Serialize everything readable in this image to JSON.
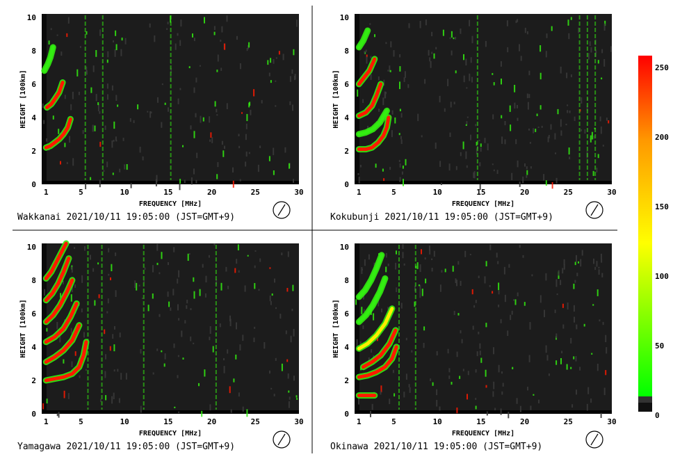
{
  "colors": {
    "background": "#ffffff",
    "plot_background": "#1c1c1c",
    "low_echo": "#33ee11",
    "mid_echo": "#ffee00",
    "high_echo": "#ff1a00"
  },
  "colorbar": {
    "ticks": [
      "250",
      "200",
      "150",
      "100",
      "50",
      "0"
    ],
    "range": [
      0,
      255
    ],
    "stops": [
      "#ff0000",
      "#ff9900",
      "#ffff00",
      "#00ff00"
    ]
  },
  "chart_data": [
    {
      "type": "heatmap",
      "station": "Wakkanai",
      "timestamp": "2021/10/11 19:05:00 (JST=GMT+9)",
      "xlabel": "FREQUENCY [MHz]",
      "ylabel": "HEIGHT [100km]",
      "xlim": [
        0.5,
        30
      ],
      "ylim": [
        0,
        10.2
      ],
      "x_ticks": [
        "1",
        "5",
        "10",
        "15",
        "20",
        "25",
        "30"
      ],
      "y_ticks": [
        "0",
        "2",
        "4",
        "6",
        "8",
        "10"
      ],
      "traces": [
        {
          "x": [
            1.0,
            1.5,
            2.0,
            2.5,
            3.0,
            3.5,
            3.8
          ],
          "y": [
            2.2,
            2.3,
            2.5,
            2.7,
            3.0,
            3.4,
            3.9
          ],
          "level": 250
        },
        {
          "x": [
            1.1,
            1.6,
            2.0,
            2.5,
            2.9
          ],
          "y": [
            4.6,
            4.8,
            5.1,
            5.5,
            6.1
          ],
          "level": 230
        },
        {
          "x": [
            0.8,
            1.2,
            1.5,
            1.8
          ],
          "y": [
            6.8,
            7.2,
            7.6,
            8.2
          ],
          "level": 60
        }
      ],
      "lines": [
        5.5,
        7.5,
        15.3
      ],
      "grid": false
    },
    {
      "type": "heatmap",
      "station": "Kokubunji",
      "timestamp": "2021/10/11 19:05:00 (JST=GMT+9)",
      "xlabel": "FREQUENCY [MHz]",
      "ylabel": "HEIGHT [100km]",
      "xlim": [
        0.5,
        30
      ],
      "ylim": [
        0,
        10.2
      ],
      "x_ticks": [
        "1",
        "5",
        "10",
        "15",
        "20",
        "25",
        "30"
      ],
      "y_ticks": [
        "0",
        "2",
        "4",
        "6",
        "8",
        "10"
      ],
      "traces": [
        {
          "x": [
            1.0,
            1.8,
            2.5,
            3.2,
            3.8,
            4.2,
            4.4
          ],
          "y": [
            2.1,
            2.1,
            2.2,
            2.5,
            2.9,
            3.4,
            4.0
          ],
          "level": 250
        },
        {
          "x": [
            1.0,
            1.8,
            2.5,
            3.0,
            3.5
          ],
          "y": [
            4.1,
            4.3,
            4.7,
            5.3,
            6.0
          ],
          "level": 220
        },
        {
          "x": [
            1.0,
            1.6,
            2.2,
            2.8
          ],
          "y": [
            6.0,
            6.4,
            6.8,
            7.5
          ],
          "level": 200
        },
        {
          "x": [
            1.0,
            1.8,
            2.6,
            3.4,
            4.2
          ],
          "y": [
            3.0,
            3.1,
            3.3,
            3.7,
            4.4
          ],
          "level": 80
        },
        {
          "x": [
            1.0,
            1.5,
            2.0
          ],
          "y": [
            8.2,
            8.6,
            9.2
          ],
          "level": 60
        }
      ],
      "lines": [
        14.6,
        26.3,
        27.2,
        28.1
      ],
      "grid": false
    },
    {
      "type": "heatmap",
      "station": "Yamagawa",
      "timestamp": "2021/10/11 19:05:00 (JST=GMT+9)",
      "xlabel": "FREQUENCY [MHz]",
      "ylabel": "HEIGHT [100km]",
      "xlim": [
        0.5,
        30
      ],
      "ylim": [
        0,
        10.2
      ],
      "x_ticks": [
        "1",
        "5",
        "10",
        "15",
        "20",
        "25",
        "30"
      ],
      "y_ticks": [
        "0",
        "2",
        "4",
        "6",
        "8",
        "10"
      ],
      "traces": [
        {
          "x": [
            1.0,
            2.0,
            3.0,
            4.0,
            4.8,
            5.3,
            5.6
          ],
          "y": [
            2.0,
            2.1,
            2.2,
            2.4,
            2.8,
            3.5,
            4.3
          ],
          "level": 250
        },
        {
          "x": [
            1.0,
            2.0,
            3.0,
            4.0,
            4.8
          ],
          "y": [
            3.1,
            3.4,
            3.8,
            4.4,
            5.3
          ],
          "level": 240
        },
        {
          "x": [
            1.0,
            2.0,
            3.0,
            3.8,
            4.5
          ],
          "y": [
            4.3,
            4.6,
            5.1,
            5.8,
            6.6
          ],
          "level": 240
        },
        {
          "x": [
            1.0,
            1.8,
            2.6,
            3.4,
            4.0
          ],
          "y": [
            5.5,
            5.9,
            6.5,
            7.3,
            8.0
          ],
          "level": 240
        },
        {
          "x": [
            1.0,
            1.7,
            2.4,
            3.0,
            3.6
          ],
          "y": [
            6.8,
            7.2,
            7.8,
            8.5,
            9.3
          ],
          "level": 240
        },
        {
          "x": [
            1.0,
            1.6,
            2.2,
            2.8,
            3.3
          ],
          "y": [
            8.1,
            8.5,
            9.1,
            9.7,
            10.2
          ],
          "level": 240
        }
      ],
      "lines": [
        5.8,
        7.4,
        12.2,
        20.5
      ],
      "grid": false
    },
    {
      "type": "heatmap",
      "station": "Okinawa",
      "timestamp": "2021/10/11 19:05:00 (JST=GMT+9)",
      "xlabel": "FREQUENCY [MHz]",
      "ylabel": "HEIGHT [100km]",
      "xlim": [
        0.5,
        30
      ],
      "ylim": [
        0,
        10.2
      ],
      "x_ticks": [
        "1",
        "5",
        "10",
        "15",
        "20",
        "25",
        "30"
      ],
      "y_ticks": [
        "0",
        "2",
        "4",
        "6",
        "8",
        "10"
      ],
      "traces": [
        {
          "x": [
            1.0,
            1.6,
            2.2,
            2.8
          ],
          "y": [
            1.1,
            1.1,
            1.1,
            1.1
          ],
          "level": 250
        },
        {
          "x": [
            1.0,
            2.0,
            3.0,
            4.0,
            4.8,
            5.3
          ],
          "y": [
            2.2,
            2.3,
            2.5,
            2.8,
            3.3,
            4.0
          ],
          "level": 220
        },
        {
          "x": [
            1.5,
            2.5,
            3.5,
            4.5,
            5.2
          ],
          "y": [
            2.8,
            3.1,
            3.5,
            4.2,
            5.0
          ],
          "level": 230
        },
        {
          "x": [
            1.0,
            2.0,
            3.0,
            4.0,
            4.8
          ],
          "y": [
            3.9,
            4.2,
            4.7,
            5.4,
            6.3
          ],
          "level": 130
        },
        {
          "x": [
            1.0,
            1.8,
            2.6,
            3.4,
            4.0
          ],
          "y": [
            5.5,
            5.9,
            6.5,
            7.3,
            8.1
          ],
          "level": 70
        },
        {
          "x": [
            1.0,
            1.7,
            2.4,
            3.0,
            3.6
          ],
          "y": [
            7.0,
            7.4,
            8.0,
            8.7,
            9.5
          ],
          "level": 70
        }
      ],
      "lines": [
        5.6,
        7.5
      ],
      "grid": false
    }
  ]
}
